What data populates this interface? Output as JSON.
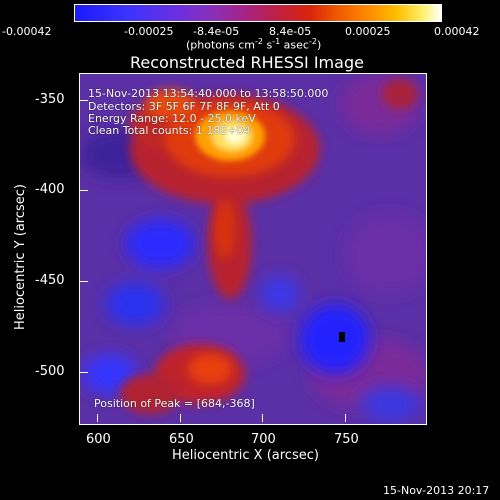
{
  "colorbar": {
    "ticks": [
      "-0.00042",
      "-0.00025",
      "-8.4e-05",
      "8.4e-05",
      "0.00025",
      "0.00042"
    ],
    "unit_label": "(photons cm",
    "unit_mid": " s",
    "unit_tail": " asec",
    "unit_sup1": "-2",
    "unit_sup2": "-1",
    "unit_sup3": "-2",
    "unit_close": ")"
  },
  "plot": {
    "title": "Reconstructed RHESSI Image",
    "info_lines": [
      "15-Nov-2013 13:54:40.000 to 13:58:50.000",
      "Detectors: 3F 5F 6F 7F 8F 9F, Att 0",
      "Energy Range: 12.0 - 25.0 keV",
      "Clean     Total counts: 1.18E+04"
    ],
    "peak_text": "Position of Peak = [684,-368]",
    "x_label": "Heliocentric X (arcsec)",
    "y_label": "Heliocentric Y (arcsec)",
    "x_ticks": [
      "600",
      "650",
      "700",
      "750"
    ],
    "y_ticks": [
      "-350",
      "-400",
      "-450",
      "-500"
    ]
  },
  "footer": {
    "timestamp": "15-Nov-2013 20:17"
  },
  "colors": {
    "background": "#000000",
    "low": "#2a2aff",
    "mid": "#6a2fb0",
    "high": "#ff4000",
    "peak": "#ffffcc"
  }
}
